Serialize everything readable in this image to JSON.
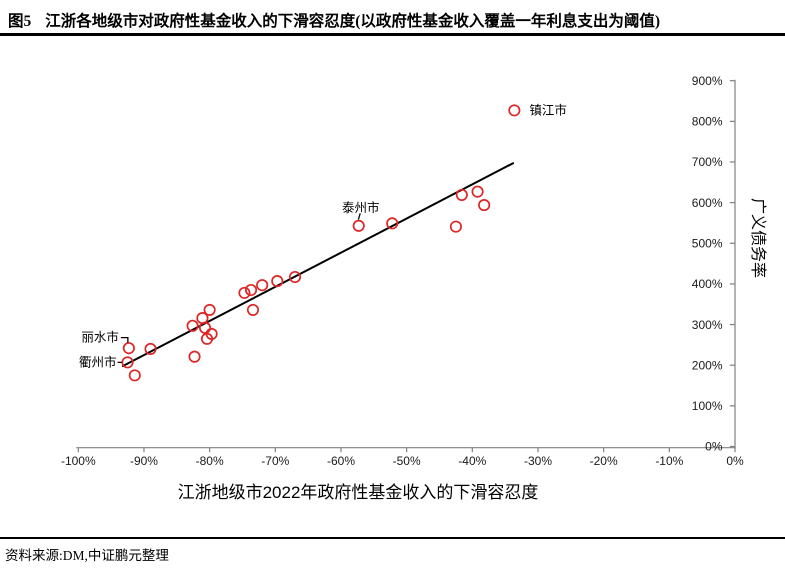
{
  "figure": {
    "label": "图5",
    "title": "江浙各地级市对政府性基金收入的下滑容忍度(以政府性基金收入覆盖一年利息支出为阈值)",
    "source": "资料来源:DM,中证鹏元整理"
  },
  "chart_data": {
    "type": "scatter",
    "xlabel": "江浙地级市2022年政府性基金收入的下滑容忍度",
    "ylabel": "广义债务率",
    "xlim": [
      -100,
      0
    ],
    "ylim": [
      0,
      900
    ],
    "x_ticks": [
      "-100%",
      "-90%",
      "-80%",
      "-70%",
      "-60%",
      "-50%",
      "-40%",
      "-30%",
      "-20%",
      "-10%",
      "0%"
    ],
    "y_ticks": [
      "0%",
      "100%",
      "200%",
      "300%",
      "400%",
      "500%",
      "600%",
      "700%",
      "800%",
      "900%"
    ],
    "grid": false,
    "legend": "none",
    "marker_color": "#dd2626",
    "trendline": {
      "x1": -93.2,
      "y1": 198,
      "x2": -33.8,
      "y2": 697,
      "color": "#000000"
    },
    "points": [
      {
        "x": -92.3,
        "y": 242,
        "label": "丽水市",
        "label_side": "left-up"
      },
      {
        "x": -92.5,
        "y": 207,
        "label": "衢州市",
        "label_side": "left"
      },
      {
        "x": -91.4,
        "y": 175
      },
      {
        "x": -89.0,
        "y": 240
      },
      {
        "x": -82.6,
        "y": 297
      },
      {
        "x": -82.3,
        "y": 221
      },
      {
        "x": -81.1,
        "y": 316
      },
      {
        "x": -80.7,
        "y": 292
      },
      {
        "x": -80.4,
        "y": 265
      },
      {
        "x": -80.0,
        "y": 336
      },
      {
        "x": -79.7,
        "y": 277
      },
      {
        "x": -74.7,
        "y": 378
      },
      {
        "x": -73.7,
        "y": 385
      },
      {
        "x": -73.4,
        "y": 336
      },
      {
        "x": -72.0,
        "y": 397
      },
      {
        "x": -69.7,
        "y": 407
      },
      {
        "x": -67.0,
        "y": 417
      },
      {
        "x": -57.3,
        "y": 543,
        "label": "泰州市",
        "label_side": "above"
      },
      {
        "x": -52.2,
        "y": 549
      },
      {
        "x": -42.5,
        "y": 541
      },
      {
        "x": -41.6,
        "y": 619
      },
      {
        "x": -39.2,
        "y": 627
      },
      {
        "x": -38.2,
        "y": 594
      },
      {
        "x": -33.6,
        "y": 827,
        "label": "镇江市",
        "label_side": "right"
      }
    ]
  }
}
